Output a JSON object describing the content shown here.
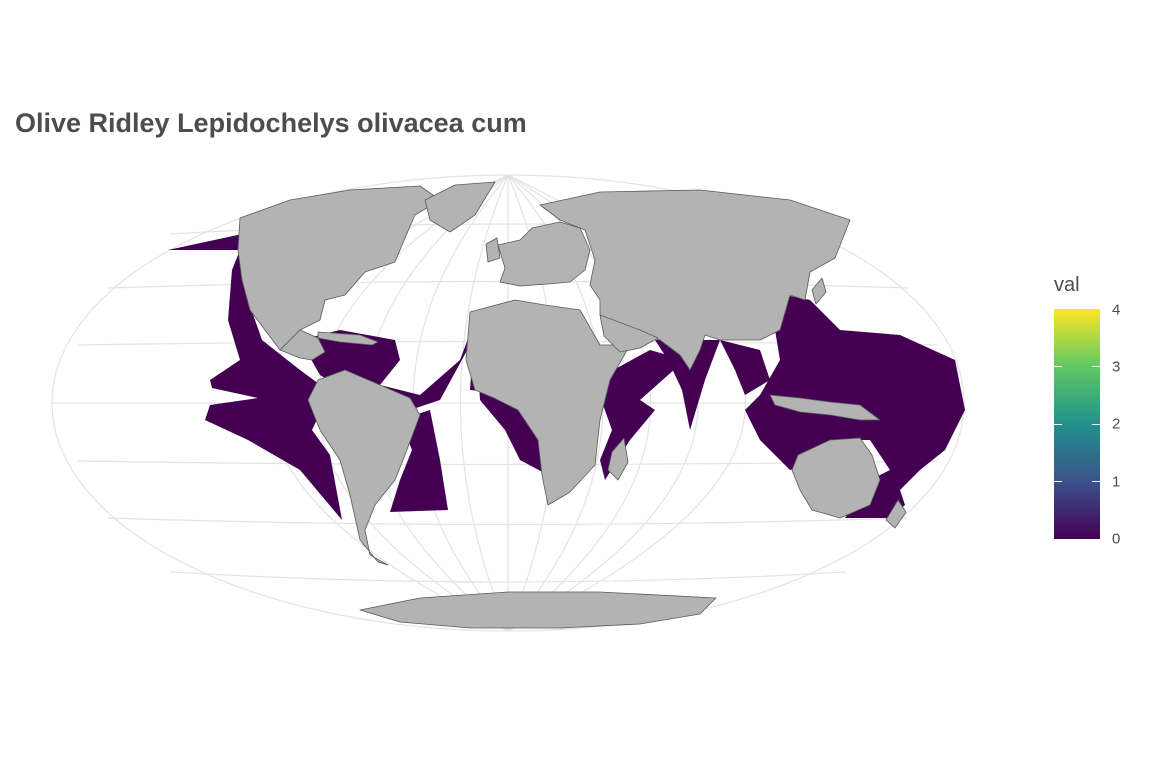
{
  "title": "Olive Ridley Lepidochelys olivacea cum",
  "legend": {
    "title": "val",
    "ticks": [
      "0",
      "1",
      "2",
      "3",
      "4"
    ],
    "range": [
      0,
      4
    ],
    "palette": "viridis",
    "colors": [
      "#440154",
      "#3b528b",
      "#21918c",
      "#5ec962",
      "#fde725"
    ]
  },
  "map": {
    "projection": "mollweide",
    "graticule": true,
    "colors": {
      "land": "#b3b3b3",
      "land_outline": "#5a5a5a",
      "range": "#440154",
      "graticule": "#e3e3e3"
    }
  }
}
